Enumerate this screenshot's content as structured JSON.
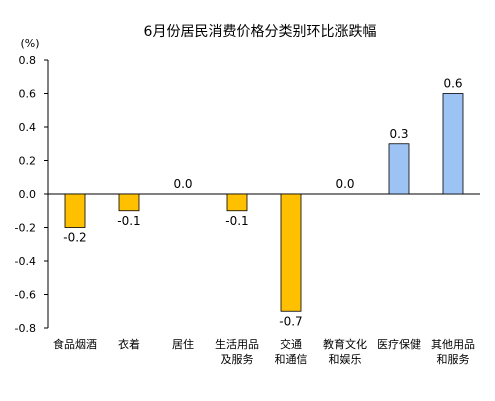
{
  "chart_data": {
    "type": "bar",
    "title": "6月份居民消费价格分类别环比涨跌幅",
    "unit": "(%)",
    "ylim": [
      -0.8,
      0.8
    ],
    "y_ticks": [
      "0.8",
      "0.6",
      "0.4",
      "0.2",
      "0.0",
      "-0.2",
      "-0.4",
      "-0.6",
      "-0.8"
    ],
    "y_tick_values": [
      0.8,
      0.6,
      0.4,
      0.2,
      0.0,
      -0.2,
      -0.4,
      -0.6,
      -0.8
    ],
    "categories": [
      [
        "食品烟酒"
      ],
      [
        "衣着"
      ],
      [
        "居住"
      ],
      [
        "生活用品",
        "及服务"
      ],
      [
        "交通",
        "和通信"
      ],
      [
        "教育文化",
        "和娱乐"
      ],
      [
        "医疗保健"
      ],
      [
        "其他用品",
        "和服务"
      ]
    ],
    "values": [
      -0.2,
      -0.1,
      0.0,
      -0.1,
      -0.7,
      0.0,
      0.3,
      0.6
    ],
    "value_labels": [
      "-0.2",
      "-0.1",
      "0.0",
      "-0.1",
      "-0.7",
      "0.0",
      "0.3",
      "0.6"
    ],
    "colors": {
      "negative": "#FFC000",
      "positive": "#9DC3F5",
      "stroke": "#000000"
    },
    "grid": false,
    "legend": "none"
  }
}
